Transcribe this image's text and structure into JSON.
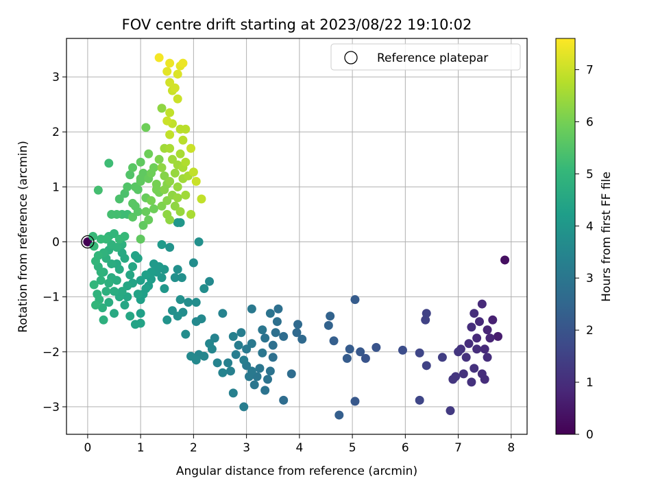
{
  "chart_data": {
    "type": "scatter",
    "title": "FOV centre drift starting at 2023/08/22 19:10:02",
    "xlabel": "Angular distance from reference (arcmin)",
    "ylabel": "Rotation from reference (arcmin)",
    "xlim": [
      -0.4,
      8.3
    ],
    "ylim": [
      -3.5,
      3.7
    ],
    "xticks": [
      0,
      1,
      2,
      3,
      4,
      5,
      6,
      7,
      8
    ],
    "yticks": [
      -3,
      -2,
      -1,
      0,
      1,
      2,
      3
    ],
    "grid": true,
    "legend": {
      "location": "upper right",
      "entries": [
        {
          "label": "Reference platepar",
          "marker": "open-circle"
        }
      ]
    },
    "reference_point": {
      "x": 0,
      "y": 0
    },
    "colorbar": {
      "label": "Hours from first FF file",
      "colormap": "viridis",
      "range": [
        0,
        7.6
      ],
      "ticks": [
        0,
        1,
        2,
        3,
        4,
        5,
        6,
        7
      ]
    },
    "color_stops": [
      "#440154",
      "#482878",
      "#3e4989",
      "#31688e",
      "#26828e",
      "#1f9e89",
      "#35b779",
      "#6ece58",
      "#b5de2b",
      "#fde725"
    ],
    "points": [
      [
        0.0,
        0.0,
        0.0
      ],
      [
        7.88,
        -0.33,
        0.3
      ],
      [
        7.75,
        -1.72,
        0.6
      ],
      [
        7.65,
        -1.42,
        0.7
      ],
      [
        7.55,
        -1.6,
        0.8
      ],
      [
        7.45,
        -1.13,
        0.9
      ],
      [
        7.4,
        -1.45,
        0.9
      ],
      [
        7.35,
        -1.75,
        0.9
      ],
      [
        7.3,
        -1.3,
        1.0
      ],
      [
        7.25,
        -1.55,
        1.0
      ],
      [
        7.2,
        -1.85,
        1.0
      ],
      [
        7.15,
        -2.1,
        1.1
      ],
      [
        7.1,
        -2.4,
        1.1
      ],
      [
        7.05,
        -1.95,
        1.1
      ],
      [
        7.0,
        -2.0,
        1.2
      ],
      [
        6.95,
        -2.45,
        1.2
      ],
      [
        6.9,
        -2.5,
        1.2
      ],
      [
        7.25,
        -2.55,
        1.1
      ],
      [
        7.3,
        -2.3,
        1.1
      ],
      [
        7.5,
        -2.5,
        1.0
      ],
      [
        7.55,
        -2.1,
        1.0
      ],
      [
        7.6,
        -1.75,
        0.8
      ],
      [
        7.5,
        -1.95,
        0.9
      ],
      [
        7.35,
        -1.95,
        1.0
      ],
      [
        7.45,
        -2.4,
        1.0
      ],
      [
        6.85,
        -3.07,
        1.3
      ],
      [
        6.7,
        -2.1,
        1.4
      ],
      [
        6.4,
        -1.3,
        1.5
      ],
      [
        6.38,
        -1.42,
        1.5
      ],
      [
        6.4,
        -2.25,
        1.5
      ],
      [
        6.27,
        -2.02,
        1.6
      ],
      [
        6.27,
        -2.88,
        1.6
      ],
      [
        5.95,
        -1.97,
        1.8
      ],
      [
        5.45,
        -1.92,
        2.0
      ],
      [
        5.25,
        -2.12,
        2.0
      ],
      [
        5.15,
        -2.0,
        2.1
      ],
      [
        5.05,
        -1.05,
        2.2
      ],
      [
        5.05,
        -2.9,
        2.1
      ],
      [
        4.95,
        -1.95,
        2.2
      ],
      [
        4.9,
        -2.12,
        2.2
      ],
      [
        4.75,
        -3.15,
        2.3
      ],
      [
        4.65,
        -1.8,
        2.3
      ],
      [
        4.58,
        -1.35,
        2.4
      ],
      [
        4.55,
        -1.52,
        2.4
      ],
      [
        4.05,
        -1.77,
        2.6
      ],
      [
        3.97,
        -1.5,
        2.6
      ],
      [
        3.95,
        -1.65,
        2.6
      ],
      [
        3.85,
        -2.4,
        2.7
      ],
      [
        3.7,
        -2.88,
        2.7
      ],
      [
        3.7,
        -1.72,
        2.7
      ],
      [
        3.6,
        -1.22,
        2.8
      ],
      [
        3.58,
        -1.45,
        2.8
      ],
      [
        3.55,
        -1.65,
        2.8
      ],
      [
        3.5,
        -1.88,
        2.8
      ],
      [
        3.5,
        -2.1,
        2.8
      ],
      [
        3.45,
        -1.3,
        2.9
      ],
      [
        3.45,
        -2.35,
        2.9
      ],
      [
        3.4,
        -2.5,
        2.9
      ],
      [
        3.35,
        -2.7,
        2.9
      ],
      [
        3.35,
        -1.75,
        2.9
      ],
      [
        3.3,
        -1.6,
        3.0
      ],
      [
        3.3,
        -2.02,
        3.0
      ],
      [
        3.25,
        -2.3,
        3.0
      ],
      [
        3.2,
        -2.45,
        3.0
      ],
      [
        3.15,
        -2.6,
        3.0
      ],
      [
        3.1,
        -2.35,
        3.1
      ],
      [
        3.05,
        -2.45,
        3.1
      ],
      [
        3.0,
        -2.25,
        3.1
      ],
      [
        3.1,
        -1.22,
        3.1
      ],
      [
        3.1,
        -1.85,
        3.1
      ],
      [
        3.0,
        -1.95,
        3.1
      ],
      [
        2.95,
        -2.15,
        3.2
      ],
      [
        2.95,
        -3.0,
        3.2
      ],
      [
        2.9,
        -1.65,
        3.2
      ],
      [
        2.85,
        -1.88,
        3.2
      ],
      [
        2.8,
        -2.05,
        3.2
      ],
      [
        2.75,
        -2.75,
        3.3
      ],
      [
        2.75,
        -1.72,
        3.3
      ],
      [
        2.7,
        -2.35,
        3.3
      ],
      [
        2.65,
        -2.2,
        3.3
      ],
      [
        2.55,
        -2.38,
        3.4
      ],
      [
        2.55,
        -1.3,
        3.4
      ],
      [
        2.45,
        -2.2,
        3.4
      ],
      [
        2.4,
        -1.75,
        3.4
      ],
      [
        2.35,
        -1.95,
        3.5
      ],
      [
        2.3,
        -1.85,
        3.5
      ],
      [
        2.2,
        -2.08,
        3.5
      ],
      [
        2.1,
        -2.05,
        3.5
      ],
      [
        2.05,
        -2.15,
        3.6
      ],
      [
        1.95,
        -2.08,
        3.6
      ],
      [
        2.3,
        -0.72,
        3.6
      ],
      [
        2.2,
        -0.85,
        3.7
      ],
      [
        2.15,
        -1.4,
        3.6
      ],
      [
        2.05,
        -1.45,
        3.6
      ],
      [
        2.05,
        -1.1,
        3.7
      ],
      [
        2.0,
        -0.38,
        3.7
      ],
      [
        2.1,
        0.0,
        3.8
      ],
      [
        1.9,
        -1.1,
        3.7
      ],
      [
        1.85,
        -1.68,
        3.7
      ],
      [
        1.8,
        -1.28,
        3.7
      ],
      [
        1.75,
        -1.05,
        3.8
      ],
      [
        1.7,
        -1.35,
        3.8
      ],
      [
        1.65,
        -0.65,
        3.8
      ],
      [
        1.6,
        -1.25,
        3.8
      ],
      [
        1.55,
        -0.1,
        3.9
      ],
      [
        1.5,
        -1.42,
        3.9
      ],
      [
        1.45,
        -0.85,
        4.0
      ],
      [
        1.45,
        -0.5,
        4.0
      ],
      [
        1.4,
        -0.65,
        4.0
      ],
      [
        1.35,
        -0.45,
        4.1
      ],
      [
        1.3,
        -0.55,
        4.1
      ],
      [
        1.25,
        -0.4,
        4.1
      ],
      [
        1.2,
        -0.55,
        4.2
      ],
      [
        1.15,
        -0.8,
        4.2
      ],
      [
        1.4,
        -0.05,
        4.1
      ],
      [
        1.3,
        -0.5,
        4.1
      ],
      [
        1.75,
        0.35,
        4.0
      ],
      [
        1.7,
        -0.5,
        3.8
      ],
      [
        1.78,
        -0.65,
        3.8
      ],
      [
        1.2,
        -0.68,
        4.2
      ],
      [
        1.1,
        -0.6,
        4.3
      ],
      [
        1.05,
        -0.95,
        4.3
      ],
      [
        1.0,
        -1.05,
        4.3
      ],
      [
        0.95,
        -0.3,
        4.4
      ],
      [
        0.9,
        -0.25,
        4.4
      ],
      [
        0.85,
        -0.45,
        4.5
      ],
      [
        0.8,
        -0.6,
        4.5
      ],
      [
        0.75,
        -0.8,
        4.5
      ],
      [
        0.7,
        -0.3,
        4.6
      ],
      [
        0.65,
        -0.2,
        4.6
      ],
      [
        0.6,
        -0.5,
        4.6
      ],
      [
        0.55,
        -0.7,
        4.7
      ],
      [
        0.5,
        -0.9,
        4.7
      ],
      [
        0.45,
        -0.4,
        4.7
      ],
      [
        0.4,
        -0.15,
        4.8
      ],
      [
        0.35,
        -0.3,
        4.8
      ],
      [
        0.3,
        -0.55,
        4.8
      ],
      [
        0.25,
        -0.7,
        4.9
      ],
      [
        0.2,
        -0.45,
        4.9
      ],
      [
        0.18,
        -0.95,
        4.9
      ],
      [
        0.15,
        -0.35,
        5.0
      ],
      [
        0.12,
        -0.78,
        5.0
      ],
      [
        1.0,
        -1.3,
        4.3
      ],
      [
        0.9,
        -1.5,
        4.4
      ],
      [
        0.8,
        -1.35,
        4.5
      ],
      [
        0.7,
        -1.15,
        4.5
      ],
      [
        0.6,
        -1.0,
        4.6
      ],
      [
        0.5,
        -1.3,
        4.6
      ],
      [
        0.4,
        -1.1,
        4.7
      ],
      [
        0.3,
        -1.42,
        4.8
      ],
      [
        0.28,
        -1.2,
        4.8
      ],
      [
        0.22,
        -1.05,
        4.9
      ],
      [
        0.15,
        -1.15,
        5.0
      ],
      [
        1.1,
        -0.85,
        4.3
      ],
      [
        1.0,
        -0.7,
        4.3
      ],
      [
        0.95,
        -0.95,
        4.4
      ],
      [
        0.85,
        -0.75,
        4.4
      ],
      [
        0.75,
        -1.0,
        4.5
      ],
      [
        0.65,
        -0.9,
        4.6
      ],
      [
        0.55,
        -0.4,
        4.6
      ],
      [
        0.45,
        -0.65,
        4.7
      ],
      [
        0.4,
        -0.75,
        4.8
      ],
      [
        0.35,
        -0.9,
        4.8
      ],
      [
        0.3,
        -0.2,
        4.9
      ],
      [
        0.25,
        -0.55,
        4.9
      ],
      [
        0.2,
        -0.25,
        5.0
      ],
      [
        0.12,
        -0.08,
        5.1
      ],
      [
        0.1,
        0.1,
        5.1
      ],
      [
        1.0,
        -1.48,
        4.4
      ],
      [
        0.75,
        0.5,
        5.2
      ],
      [
        0.65,
        0.5,
        5.2
      ],
      [
        0.55,
        0.5,
        5.3
      ],
      [
        0.45,
        0.5,
        5.3
      ],
      [
        0.7,
        0.1,
        5.1
      ],
      [
        0.6,
        0.05,
        5.1
      ],
      [
        0.5,
        0.15,
        5.0
      ],
      [
        0.4,
        0.1,
        5.0
      ],
      [
        0.35,
        0.05,
        5.1
      ],
      [
        0.25,
        0.05,
        5.1
      ],
      [
        0.45,
        -0.05,
        4.9
      ],
      [
        0.55,
        -0.1,
        4.9
      ],
      [
        0.65,
        -0.05,
        4.8
      ],
      [
        0.2,
        0.94,
        5.3
      ],
      [
        0.4,
        1.43,
        5.2
      ],
      [
        0.6,
        0.78,
        5.4
      ],
      [
        0.7,
        0.88,
        5.4
      ],
      [
        0.75,
        1.0,
        5.5
      ],
      [
        0.8,
        1.22,
        5.5
      ],
      [
        0.85,
        0.7,
        5.6
      ],
      [
        0.9,
        0.65,
        5.6
      ],
      [
        0.95,
        0.95,
        5.6
      ],
      [
        1.0,
        1.1,
        5.7
      ],
      [
        1.05,
        1.25,
        5.7
      ],
      [
        1.1,
        0.8,
        5.8
      ],
      [
        0.85,
        1.35,
        5.6
      ],
      [
        0.9,
        1.0,
        5.6
      ],
      [
        1.0,
        1.45,
        5.7
      ],
      [
        1.0,
        1.15,
        5.7
      ],
      [
        0.95,
        0.55,
        5.6
      ],
      [
        0.85,
        0.45,
        5.6
      ],
      [
        1.05,
        0.3,
        5.7
      ],
      [
        1.0,
        0.05,
        5.7
      ],
      [
        1.1,
        0.55,
        5.8
      ],
      [
        1.15,
        1.15,
        5.8
      ],
      [
        1.2,
        1.25,
        5.9
      ],
      [
        1.25,
        1.35,
        5.9
      ],
      [
        1.3,
        1.05,
        6.0
      ],
      [
        1.35,
        0.9,
        6.0
      ],
      [
        1.1,
        2.08,
        5.9
      ],
      [
        1.15,
        1.6,
        5.9
      ],
      [
        1.2,
        0.75,
        6.0
      ],
      [
        1.3,
        0.95,
        6.0
      ],
      [
        1.35,
        1.5,
        6.1
      ],
      [
        1.4,
        0.65,
        6.1
      ],
      [
        1.45,
        1.2,
        6.2
      ],
      [
        1.5,
        0.75,
        6.2
      ],
      [
        1.55,
        1.1,
        6.3
      ],
      [
        1.6,
        0.85,
        6.3
      ],
      [
        1.65,
        0.65,
        6.3
      ],
      [
        1.7,
        1.0,
        6.4
      ],
      [
        1.75,
        0.55,
        6.4
      ],
      [
        1.8,
        1.15,
        6.5
      ],
      [
        1.85,
        0.85,
        6.5
      ],
      [
        1.9,
        1.2,
        6.6
      ],
      [
        1.4,
        2.43,
        6.3
      ],
      [
        1.5,
        0.5,
        6.3
      ],
      [
        1.55,
        0.4,
        6.3
      ],
      [
        1.95,
        0.5,
        6.6
      ],
      [
        1.65,
        1.25,
        6.4
      ],
      [
        1.6,
        1.5,
        6.5
      ],
      [
        1.55,
        1.7,
        6.6
      ],
      [
        1.7,
        1.4,
        6.5
      ],
      [
        1.75,
        1.6,
        6.6
      ],
      [
        1.8,
        1.35,
        6.6
      ],
      [
        1.85,
        1.45,
        6.7
      ],
      [
        1.8,
        1.85,
        6.8
      ],
      [
        1.75,
        2.05,
        6.8
      ],
      [
        1.85,
        2.05,
        6.8
      ],
      [
        2.0,
        1.27,
        6.9
      ],
      [
        2.05,
        1.1,
        7.0
      ],
      [
        2.15,
        0.78,
        6.9
      ],
      [
        1.95,
        1.7,
        7.0
      ],
      [
        1.55,
        1.95,
        6.9
      ],
      [
        1.6,
        2.15,
        6.9
      ],
      [
        1.55,
        2.35,
        6.9
      ],
      [
        1.5,
        2.2,
        7.0
      ],
      [
        1.7,
        2.6,
        7.0
      ],
      [
        1.6,
        2.75,
        7.0
      ],
      [
        1.55,
        2.9,
        7.1
      ],
      [
        1.65,
        2.8,
        7.1
      ],
      [
        1.7,
        3.05,
        7.2
      ],
      [
        1.75,
        3.2,
        7.3
      ],
      [
        1.8,
        3.25,
        7.4
      ],
      [
        1.5,
        3.1,
        7.3
      ],
      [
        1.55,
        3.25,
        7.4
      ],
      [
        1.35,
        3.35,
        7.5
      ],
      [
        1.45,
        0.95,
        6.2
      ],
      [
        1.5,
        1.05,
        6.2
      ],
      [
        1.25,
        0.6,
        5.9
      ],
      [
        1.15,
        0.4,
        5.8
      ],
      [
        1.45,
        1.7,
        6.5
      ],
      [
        1.4,
        1.35,
        6.3
      ],
      [
        1.7,
        0.35,
        4.0
      ],
      [
        1.7,
        0.8,
        6.4
      ]
    ]
  }
}
